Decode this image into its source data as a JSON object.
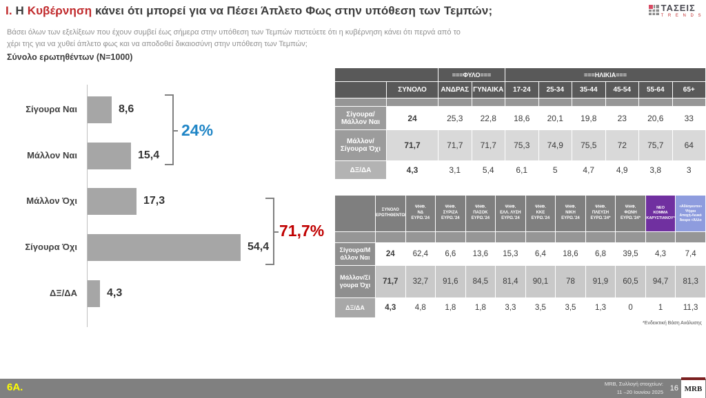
{
  "header": {
    "title_part1": "Ι.",
    "title_part2": " Η ",
    "title_part3": "Κυβέρνηση",
    "title_part4": " κάνει ότι μπορεί για να Πέσει Άπλετο Φως στην υπόθεση των Τεμπών;",
    "subtitle": "Βάσει όλων των εξελίξεων που έχουν συμβεί έως σήμερα στην υπόθεση των Τεμπών πιστεύετε ότι η κυβέρνηση κάνει ότι περνά από το χέρι της για να χυθεί άπλετο φως και να αποδοθεί δικαιοσύνη στην υπόθεση των Τεμπών;",
    "sample": "Σύνολο ερωτηθέντων (N=1000)"
  },
  "logo": {
    "icon": "grid-icon",
    "name": "ΤΑΣΕΙΣ",
    "subname": "T R E N D S"
  },
  "chart_data": {
    "type": "bar",
    "orientation": "horizontal",
    "categories": [
      "Σίγουρα Ναι",
      "Μάλλον Ναι",
      "Μάλλον Όχι",
      "Σίγουρα Όχι",
      "ΔΞ/ΔΑ"
    ],
    "values": [
      8.6,
      15.4,
      17.3,
      54.4,
      4.3
    ],
    "value_labels": [
      "8,6",
      "15,4",
      "17,3",
      "54,4",
      "4,3"
    ],
    "bar_color": "#a6a6a6",
    "xlim": [
      0,
      60
    ],
    "grid": false,
    "annotations": [
      {
        "label": "24%",
        "color": "#1f85c6",
        "covers": [
          "Σίγουρα Ναι",
          "Μάλλον Ναι"
        ]
      },
      {
        "label": "71,7%",
        "color": "#c00000",
        "covers": [
          "Μάλλον Όχι",
          "Σίγουρα Όχι"
        ]
      }
    ]
  },
  "table1": {
    "group_headers": [
      {
        "label": "",
        "span": 2
      },
      {
        "label": "===ΦΥΛΟ===",
        "span": 2
      },
      {
        "label": "===ΗΛΙΚΙΑ===",
        "span": 6
      }
    ],
    "columns": [
      "ΣΥΝΟΛΟ",
      "ΑΝΔΡΑΣ",
      "ΓΥΝΑΙΚΑ",
      "17-24",
      "25-34",
      "35-44",
      "45-54",
      "55-64",
      "65+"
    ],
    "rows": [
      {
        "label": "Σίγουρα/Μάλλον Ναι",
        "values": [
          "24",
          "25,3",
          "22,8",
          "18,6",
          "20,1",
          "19,8",
          "23",
          "20,6",
          "33"
        ]
      },
      {
        "label": "Μάλλον/Σίγουρα Όχι",
        "values": [
          "71,7",
          "71,7",
          "71,7",
          "75,3",
          "74,9",
          "75,5",
          "72",
          "75,7",
          "64"
        ]
      },
      {
        "label": "ΔΞ/ΔΑ",
        "values": [
          "4,3",
          "3,1",
          "5,4",
          "6,1",
          "5",
          "4,7",
          "4,9",
          "3,8",
          "3"
        ]
      }
    ]
  },
  "table2": {
    "columns": [
      {
        "label": "ΣΥΝΟΛΟ\nΕΡΩΤΗΘΕΝΤΩΝ"
      },
      {
        "label": "ΨΗΦ.\nΝΔ\nΕΥΡΩ.'24"
      },
      {
        "label": "ΨΗΦ.\nΣΥΡΙΖΑ\nΕΥΡΩ.'24"
      },
      {
        "label": "ΨΗΦ.\nΠΑΣΟΚ\nΕΥΡΩ.'24"
      },
      {
        "label": "ΨΗΦ.\nΕΛΛ. ΛΥΣΗ\nΕΥΡΩ.'24"
      },
      {
        "label": "ΨΗΦ.\nΚΚΕ\nΕΥΡΩ.'24"
      },
      {
        "label": "ΨΗΦ.\nΝΙΚΗ\nΕΥΡΩ.'24"
      },
      {
        "label": "ΨΗΦ.\nΠΛΕΥΣΗ\nΕΥΡΩ.'24*"
      },
      {
        "label": "ΨΗΦ.\nΦΩΝΗ\nΕΥΡΩ.'24*"
      },
      {
        "label": "ΝΕΟ\nΚΟΜΜΑ\nΚΑΡΥΣΤΙΑΝΟΥ*",
        "bg": "#7030a0",
        "fs": "5.5px"
      },
      {
        "label": "«Αδέσμευτοι»\nΨήφοι\nΑποχή-Λευκό\nΆκυρο +Άλλο",
        "bg": "#8e9cde",
        "fs": "5px"
      }
    ],
    "rows": [
      {
        "label": "Σίγουρα/Μ\nάλλον Ναι",
        "values": [
          "24",
          "62,4",
          "6,6",
          "13,6",
          "15,3",
          "6,4",
          "18,6",
          "6,8",
          "39,5",
          "4,3",
          "7,4"
        ]
      },
      {
        "label": "Μάλλον/Σί\nγουρα Όχι",
        "values": [
          "71,7",
          "32,7",
          "91,6",
          "84,5",
          "81,4",
          "90,1",
          "78",
          "91,9",
          "60,5",
          "94,7",
          "81,3"
        ]
      },
      {
        "label": "ΔΞ/ΔΑ",
        "values": [
          "4,3",
          "4,8",
          "1,8",
          "1,8",
          "3,3",
          "3,5",
          "3,5",
          "1,3",
          "0",
          "1",
          "11,3"
        ]
      }
    ],
    "footnote": "*Ενδεικτική Βάση Ανάλυσης"
  },
  "footer": {
    "slide_code": "6Α.",
    "source_line1": "MRB, Συλλογή στοιχείων:",
    "source_line2": "11 –20 Ιουνίου 2025",
    "page_number": "16",
    "logo": "MRB"
  }
}
